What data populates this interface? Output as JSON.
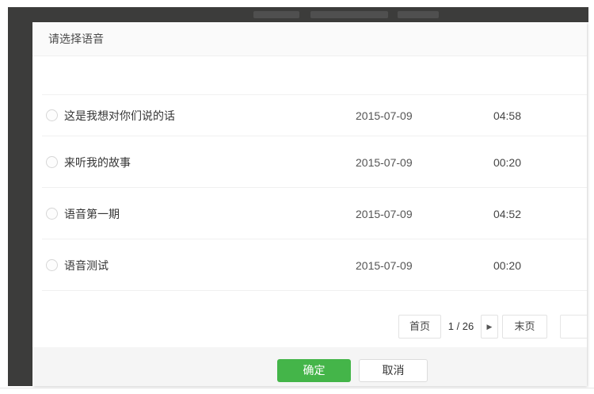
{
  "colors": {
    "overlay": "#3c3c3b",
    "confirm_green": "#44b549"
  },
  "modal": {
    "title": "请选择语音",
    "list": {
      "items": [
        {
          "label": "这是我想对你们说的话",
          "date": "2015-07-09",
          "duration": "04:58",
          "selected": false
        },
        {
          "label": "来听我的故事",
          "date": "2015-07-09",
          "duration": "00:20",
          "selected": false
        },
        {
          "label": "语音第一期",
          "date": "2015-07-09",
          "duration": "04:52",
          "selected": false
        },
        {
          "label": "语音测试",
          "date": "2015-07-09",
          "duration": "00:20",
          "selected": false
        }
      ]
    },
    "pagination": {
      "first_label": "首页",
      "page_indicator": "1 / 26",
      "next_icon": "▶",
      "last_label": "末页"
    },
    "footer": {
      "confirm_label": "确定",
      "cancel_label": "取消"
    }
  }
}
